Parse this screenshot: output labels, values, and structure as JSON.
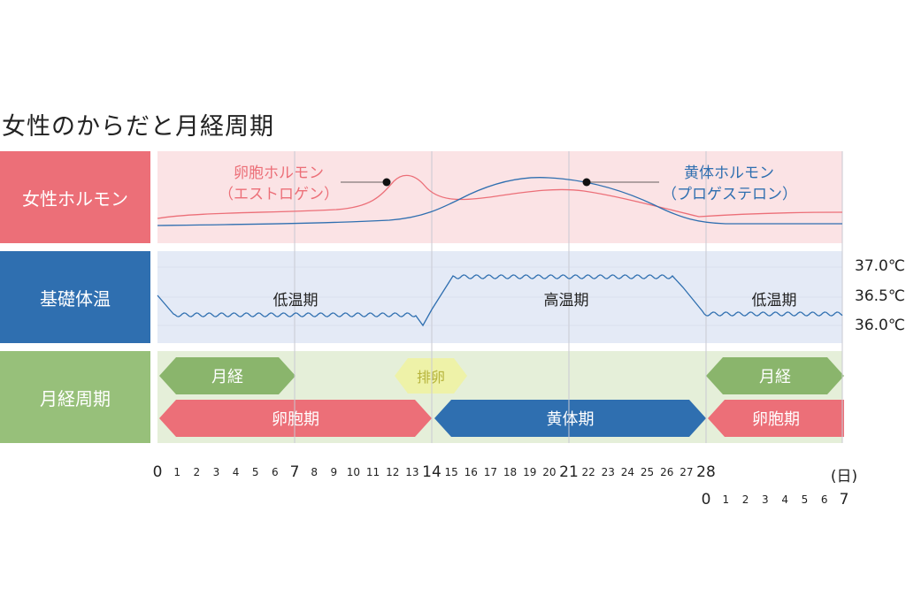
{
  "title": "女性のからだと月経周期",
  "rows": {
    "hormone": "女性ホルモン",
    "temperature": "基礎体温",
    "cycle": "月経周期"
  },
  "hormones": {
    "estrogen_line1": "卵胞ホルモン",
    "estrogen_line2": "（エストロゲン）",
    "progesterone_line1": "黄体ホルモン",
    "progesterone_line2": "（プロゲステロン）",
    "estrogen_color": "#ec6f78",
    "progesterone_color": "#2f6fb0"
  },
  "temperature": {
    "y_labels": [
      "37.0℃",
      "36.5℃",
      "36.0℃"
    ],
    "phase_low1": "低温期",
    "phase_high": "高温期",
    "phase_low2": "低温期"
  },
  "cycle": {
    "menses1": "月経",
    "ovulation": "排卵",
    "menses2": "月経",
    "follicular1": "卵胞期",
    "luteal": "黄体期",
    "follicular2": "卵胞期"
  },
  "axis": {
    "days_row1": [
      "0",
      "1",
      "2",
      "3",
      "4",
      "5",
      "6",
      "7",
      "8",
      "9",
      "10",
      "11",
      "12",
      "13",
      "14",
      "15",
      "16",
      "17",
      "18",
      "19",
      "20",
      "21",
      "22",
      "23",
      "24",
      "25",
      "26",
      "27",
      "28"
    ],
    "unit": "(日)",
    "days_row2": [
      "0",
      "1",
      "2",
      "3",
      "4",
      "5",
      "6",
      "7"
    ]
  },
  "colors": {
    "pink": "#ec6f78",
    "blue": "#2f6fb0",
    "green": "#8ab56c",
    "ovulation_fill": "#eef2a8"
  }
}
